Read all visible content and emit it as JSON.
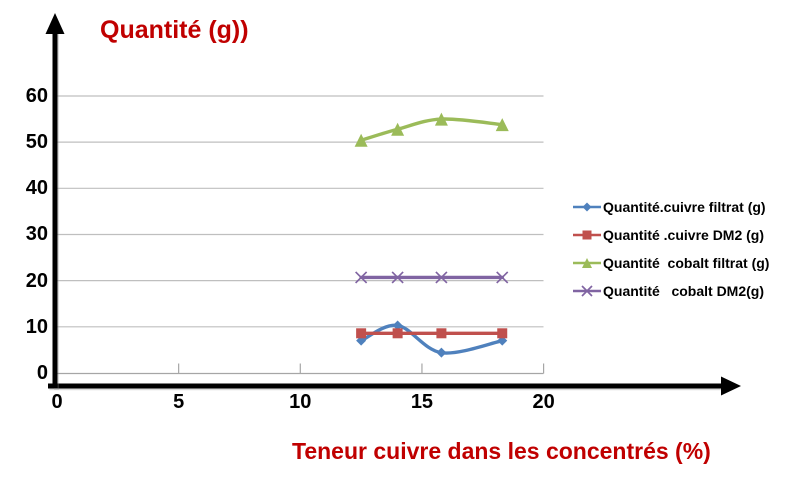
{
  "title": "Quantité (g))",
  "x_axis_label": "Teneur cuivre dans les concentrés (%)",
  "colors": {
    "accent_red": "#C00000",
    "gridline": "#BFBFBF",
    "axis_line": "#A6A6A6",
    "arrow_black": "#000000",
    "series_blue": "#4F81BD",
    "series_red": "#C0504D",
    "series_green": "#9BBB59",
    "series_purple": "#8064A2"
  },
  "chart_data": {
    "type": "line",
    "title": "Quantité (g))",
    "xlabel": "Teneur cuivre dans les concentrés (%)",
    "ylabel": "",
    "x": [
      12.5,
      14,
      15.8,
      18.3
    ],
    "series": [
      {
        "name": "Quantité.cuivre filtrat (g)",
        "color": "#4F81BD",
        "marker": "diamond",
        "values": [
          7,
          10.3,
          4.4,
          7
        ]
      },
      {
        "name": "Quantité .cuivre DM2 (g)",
        "color": "#C0504D",
        "marker": "square",
        "values": [
          8.6,
          8.6,
          8.6,
          8.6
        ]
      },
      {
        "name": "Quantité  cobalt filtrat (g)",
        "color": "#9BBB59",
        "marker": "triangle",
        "values": [
          50.4,
          52.8,
          55,
          53.8
        ]
      },
      {
        "name": "Quantité   cobalt DM2(g)",
        "color": "#8064A2",
        "marker": "x",
        "values": [
          20.7,
          20.7,
          20.7,
          20.7
        ]
      }
    ],
    "x_ticks": [
      0,
      5,
      10,
      15,
      20
    ],
    "y_ticks": [
      0,
      10,
      20,
      30,
      40,
      50,
      60
    ],
    "xlim": [
      0,
      28
    ],
    "ylim": [
      0,
      65
    ],
    "grid": true,
    "legend_position": "right"
  }
}
